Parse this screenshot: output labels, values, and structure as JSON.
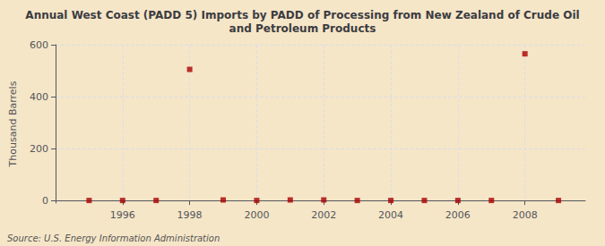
{
  "chart_data": {
    "type": "scatter",
    "title": "Annual West Coast (PADD 5) Imports by PADD of Processing from New Zealand of Crude Oil\nand Petroleum Products",
    "ylabel": "Thousand Barrels",
    "source": "Source: U.S. Energy Information Administration",
    "background_color": "#f5e6c8",
    "x": [
      1995,
      1996,
      1997,
      1998,
      1999,
      2000,
      2001,
      2002,
      2003,
      2004,
      2005,
      2006,
      2007,
      2008,
      2009
    ],
    "values": [
      0,
      0,
      0,
      505,
      2,
      0,
      2,
      2,
      0,
      0,
      0,
      0,
      0,
      565,
      0
    ],
    "color": "#aa0000",
    "marker": "square",
    "xlim": [
      1994.0,
      2009.8
    ],
    "xticks": [
      1996,
      1998,
      2000,
      2002,
      2004,
      2006,
      2008
    ],
    "ylim": [
      -10,
      600
    ],
    "yticks": [
      0,
      200,
      400,
      600
    ],
    "grid": true
  }
}
